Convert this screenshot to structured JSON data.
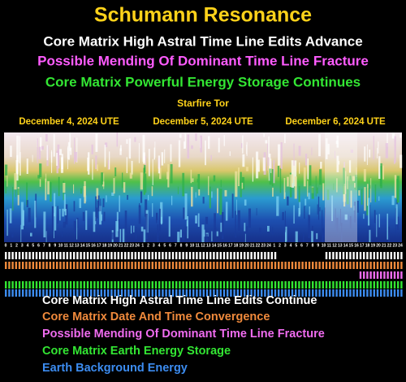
{
  "header": {
    "title": "Schumann Resonance",
    "lines": [
      "Core Matrix High Astral Time Line Edits Advance",
      "Possible Mending Of Dominant Time Line Fracture",
      "Core Matrix Powerful Energy Storage Continues"
    ],
    "source": "Starfire Tor",
    "dates": [
      "December 4, 2024 UTE",
      "December 5, 2024 UTE",
      "December 6, 2024 UTE"
    ]
  },
  "hours": [
    0,
    1,
    2,
    3,
    4,
    5,
    6,
    7,
    8,
    9,
    10,
    11,
    12,
    13,
    14,
    15,
    16,
    17,
    18,
    19,
    20,
    21,
    22,
    23,
    24,
    1,
    2,
    3,
    4,
    5,
    6,
    7,
    8,
    9,
    10,
    11,
    12,
    13,
    14,
    15,
    16,
    17,
    18,
    19,
    20,
    21,
    22,
    23,
    24,
    1,
    2,
    3,
    4,
    5,
    6,
    7,
    8,
    9,
    10,
    11,
    12,
    13,
    14,
    15,
    16,
    17,
    18,
    19,
    20,
    21,
    22,
    23,
    24
  ],
  "legend": [
    "Core Matrix High Astral Time Line Edits Continue",
    "Core Matrix Date And Time Convergence",
    "Possible Mending Of Dominant Time Line Fracture",
    "Core Matrix Earth Energy Storage",
    "Earth Background Energy"
  ]
}
